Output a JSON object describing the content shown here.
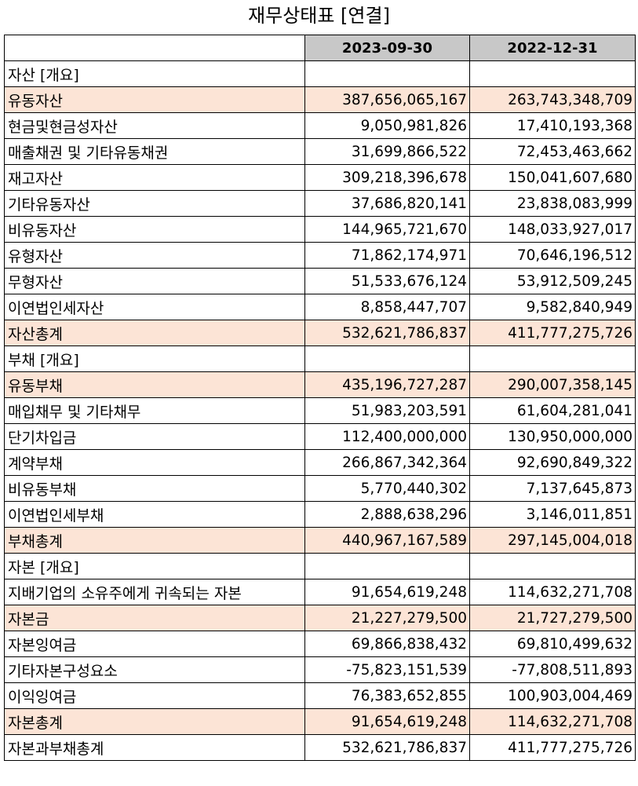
{
  "title": "재무상태표 [연결]",
  "columns": [
    "2023-09-30",
    "2022-12-31"
  ],
  "rows": [
    {
      "label": "자산 [개요]",
      "indent": 0,
      "highlight": false,
      "v1": "",
      "v2": ""
    },
    {
      "label": "유동자산",
      "indent": 1,
      "highlight": true,
      "v1": "387,656,065,167",
      "v2": "263,743,348,709"
    },
    {
      "label": "현금및현금성자산",
      "indent": 2,
      "highlight": false,
      "v1": "9,050,981,826",
      "v2": "17,410,193,368"
    },
    {
      "label": "매출채권 및 기타유동채권",
      "indent": 2,
      "highlight": false,
      "v1": "31,699,866,522",
      "v2": "72,453,463,662"
    },
    {
      "label": "재고자산",
      "indent": 2,
      "highlight": false,
      "v1": "309,218,396,678",
      "v2": "150,041,607,680"
    },
    {
      "label": "기타유동자산",
      "indent": 2,
      "highlight": false,
      "v1": "37,686,820,141",
      "v2": "23,838,083,999"
    },
    {
      "label": "비유동자산",
      "indent": 1,
      "highlight": false,
      "v1": "144,965,721,670",
      "v2": "148,033,927,017"
    },
    {
      "label": "유형자산",
      "indent": 2,
      "highlight": false,
      "v1": "71,862,174,971",
      "v2": "70,646,196,512"
    },
    {
      "label": "무형자산",
      "indent": 2,
      "highlight": false,
      "v1": "51,533,676,124",
      "v2": "53,912,509,245"
    },
    {
      "label": "이연법인세자산",
      "indent": 2,
      "highlight": false,
      "v1": "8,858,447,707",
      "v2": "9,582,840,949"
    },
    {
      "label": "자산총계",
      "indent": 1,
      "highlight": true,
      "v1": "532,621,786,837",
      "v2": "411,777,275,726"
    },
    {
      "label": "부채 [개요]",
      "indent": 0,
      "highlight": false,
      "v1": "",
      "v2": ""
    },
    {
      "label": "유동부채",
      "indent": 1,
      "highlight": true,
      "v1": "435,196,727,287",
      "v2": "290,007,358,145"
    },
    {
      "label": "매입채무 및 기타채무",
      "indent": 2,
      "highlight": false,
      "v1": "51,983,203,591",
      "v2": "61,604,281,041"
    },
    {
      "label": "단기차입금",
      "indent": 2,
      "highlight": false,
      "v1": "112,400,000,000",
      "v2": "130,950,000,000"
    },
    {
      "label": "계약부채",
      "indent": 2,
      "highlight": false,
      "v1": "266,867,342,364",
      "v2": "92,690,849,322"
    },
    {
      "label": "비유동부채",
      "indent": 1,
      "highlight": false,
      "v1": "5,770,440,302",
      "v2": "7,137,645,873"
    },
    {
      "label": "이연법인세부채",
      "indent": 2,
      "highlight": false,
      "v1": "2,888,638,296",
      "v2": "3,146,011,851"
    },
    {
      "label": "부채총계",
      "indent": 1,
      "highlight": true,
      "v1": "440,967,167,589",
      "v2": "297,145,004,018"
    },
    {
      "label": "자본 [개요]",
      "indent": 0,
      "highlight": false,
      "v1": "",
      "v2": ""
    },
    {
      "label": "지배기업의 소유주에게 귀속되는 자본",
      "indent": 1,
      "highlight": false,
      "v1": "91,654,619,248",
      "v2": "114,632,271,708"
    },
    {
      "label": "자본금",
      "indent": 2,
      "highlight": true,
      "v1": "21,227,279,500",
      "v2": "21,727,279,500"
    },
    {
      "label": "자본잉여금",
      "indent": 2,
      "highlight": false,
      "v1": "69,866,838,432",
      "v2": "69,810,499,632"
    },
    {
      "label": "기타자본구성요소",
      "indent": 2,
      "highlight": false,
      "v1": "-75,823,151,539",
      "v2": "-77,808,511,893"
    },
    {
      "label": "이익잉여금",
      "indent": 2,
      "highlight": false,
      "v1": "76,383,652,855",
      "v2": "100,903,004,469"
    },
    {
      "label": "자본총계",
      "indent": 1,
      "highlight": true,
      "v1": "91,654,619,248",
      "v2": "114,632,271,708"
    },
    {
      "label": "자본과부채총계",
      "indent": 0,
      "highlight": false,
      "v1": "532,621,786,837",
      "v2": "411,777,275,726"
    }
  ]
}
